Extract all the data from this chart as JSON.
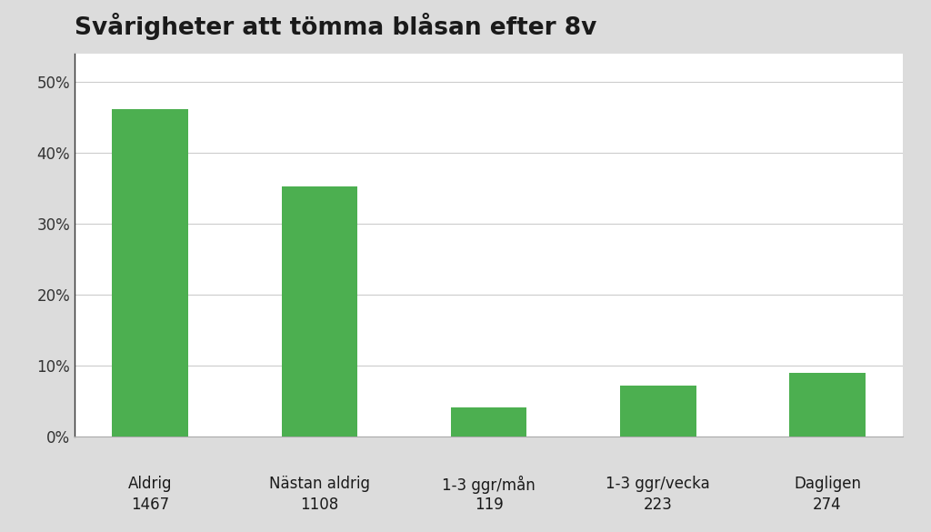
{
  "title": "Svårigheter att tömma blåsan efter 8v",
  "categories_line1": [
    "Aldrig",
    "Nästan aldrig",
    "1-3 ggr/mån",
    "1-3 ggr/vecka",
    "Dagligen"
  ],
  "categories_line2": [
    "1467",
    "1108",
    "119",
    "223",
    "274"
  ],
  "values": [
    46.1,
    35.2,
    4.1,
    7.1,
    8.9
  ],
  "bar_color": "#4caf50",
  "background_color": "#dcdcdc",
  "plot_background_color": "#ffffff",
  "ylim": [
    0,
    54
  ],
  "yticks": [
    0,
    10,
    20,
    30,
    40,
    50
  ],
  "title_fontsize": 19,
  "tick_fontsize": 12,
  "bar_width": 0.45
}
